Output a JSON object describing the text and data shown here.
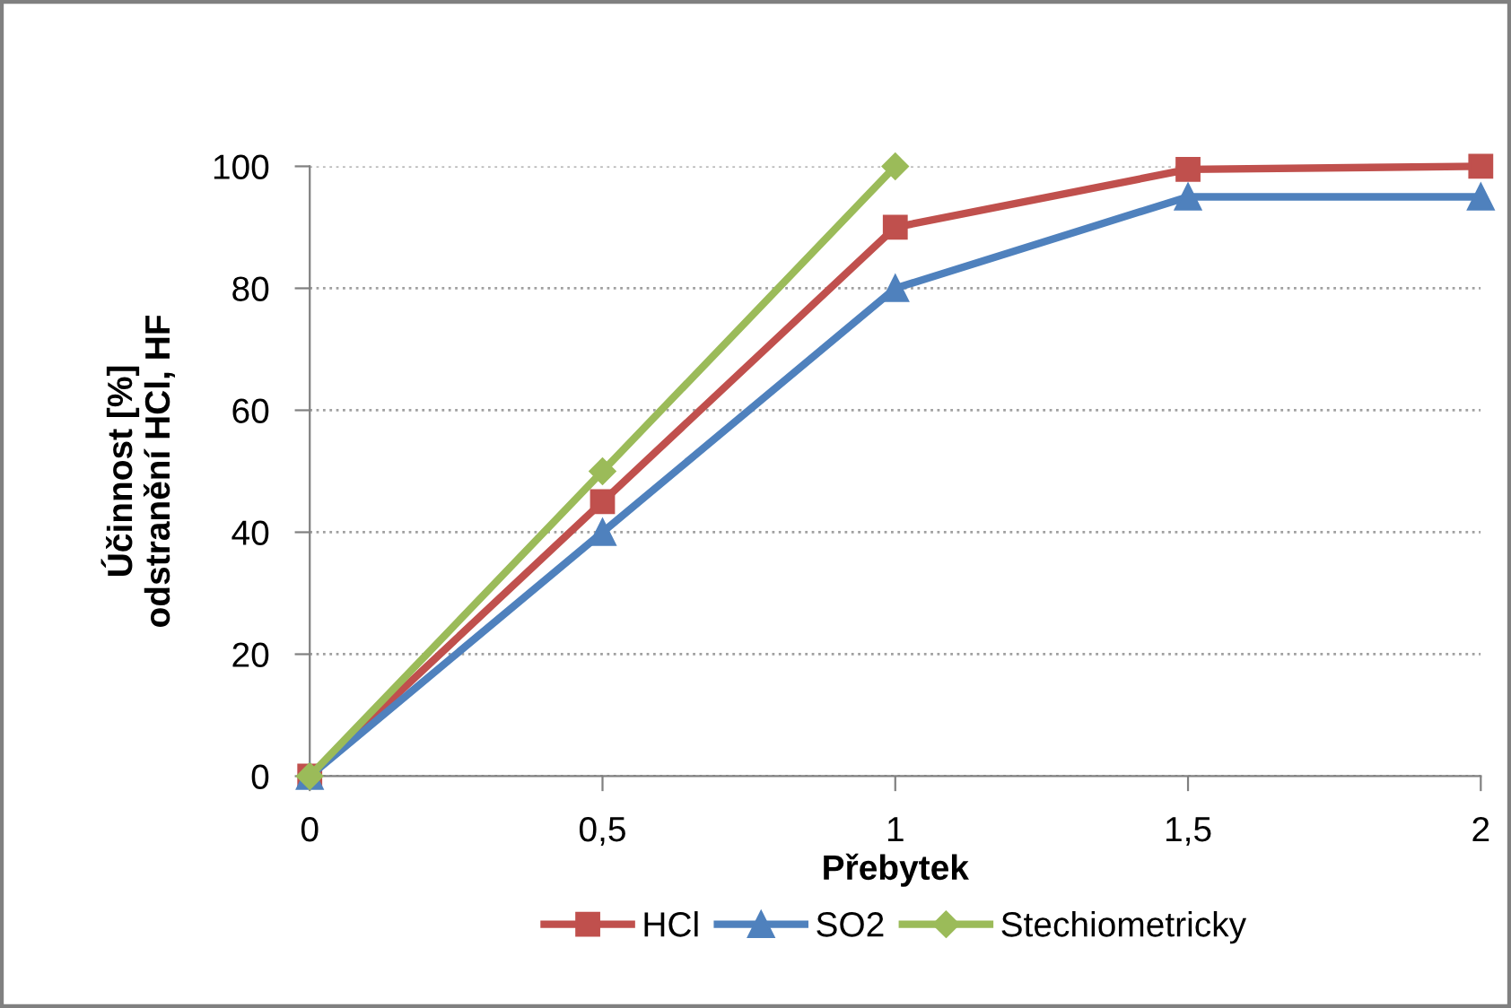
{
  "chart_data": {
    "type": "line",
    "xlabel": "Přebytek",
    "ylabel": "Účinnost [%]\nodstranění HCl, HF",
    "x": [
      0,
      0.5,
      1,
      1.5,
      2
    ],
    "series": [
      {
        "name": "HCl",
        "color": "#c0504d",
        "marker": "square",
        "values": [
          0,
          45,
          90,
          99.5,
          100
        ]
      },
      {
        "name": "SO2",
        "color": "#4f81bd",
        "marker": "triangle",
        "values": [
          0,
          40,
          80,
          95,
          95
        ]
      },
      {
        "name": "Stechiometricky",
        "color": "#9bbb59",
        "marker": "diamond",
        "x": [
          0,
          0.5,
          1
        ],
        "values": [
          0,
          50,
          100
        ]
      }
    ],
    "xlim": [
      0,
      2
    ],
    "xticks": [
      0,
      {
        "value": 0.5,
        "label": "0,5"
      },
      1,
      {
        "value": 1.5,
        "label": "1,5"
      },
      2
    ],
    "ylim": [
      0,
      100
    ],
    "yticks": [
      0,
      20,
      40,
      60,
      80,
      100
    ],
    "grid": "y",
    "legend": "bottom",
    "line_style": "solid"
  }
}
